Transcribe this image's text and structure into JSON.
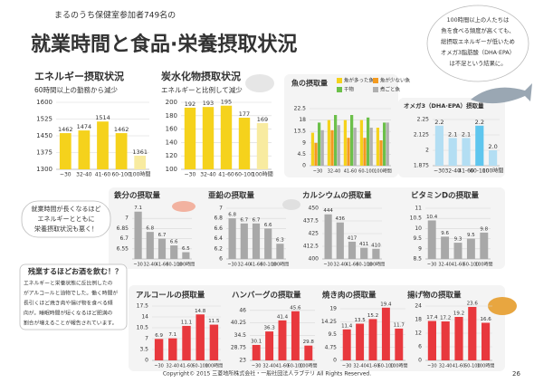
{
  "header": {
    "note": "まるのうち保健室参加者749名の",
    "title": "就業時間と食品·栄養摂取状況"
  },
  "callouts": {
    "omega": [
      "100時間以上の人たちは",
      "魚を食べる頻度が高くても、",
      "総摂取エネルギーが低いため",
      "オメガ3脂肪酸（DHA·EPA）",
      "は不足という結果に。"
    ],
    "nutrition": [
      "就業時間が長くなるほど",
      "エネルギーとともに",
      "栄養摂取状況も悪く！"
    ],
    "alcohol_title": "残業するほどお酒を飲む！？",
    "alcohol_body": [
      "エネルギーと栄養状態に反比例したの",
      "がアルコールと油物でした。働く時間が",
      "長引くほど焼き肉や揚げ物を食べる傾",
      "向が。睡眠時間が短くなるほど肥満の",
      "割合が増えることが報告されています。"
    ]
  },
  "footer": {
    "copyright": "Copyright© 2015 三菱地所株式会社・一般社団法人ラブテリ All Rights Reserved.",
    "page": "26"
  },
  "chart_data": [
    {
      "type": "bar",
      "title": "エネルギー摂取状況",
      "subtitle": "60時間以上の勤務から減少",
      "categories": [
        "~30",
        "32-40",
        "41-60",
        "60-100",
        "100時間"
      ],
      "values": [
        1462,
        1474,
        1514,
        1462,
        1361
      ],
      "colors": [
        "#f5d21c",
        "#f5d21c",
        "#f5d21c",
        "#f5d21c",
        "#f8eba0"
      ],
      "ylim": [
        1300,
        1600
      ],
      "yticks": [
        1300,
        1375,
        1450,
        1525,
        1600
      ],
      "grid": true
    },
    {
      "type": "bar",
      "title": "炭水化物摂取状況",
      "subtitle": "エネルギーと比例して減少",
      "categories": [
        "~30",
        "32-40",
        "41-60",
        "60-100",
        "100時間"
      ],
      "values": [
        192,
        193,
        195,
        177,
        169
      ],
      "colors": [
        "#f5d21c",
        "#f5d21c",
        "#f5d21c",
        "#f5d21c",
        "#f8eba0"
      ],
      "ylim": [
        100,
        200
      ],
      "yticks": [
        100,
        120,
        140,
        160,
        180,
        200
      ],
      "grid": true
    },
    {
      "type": "grouped-bar",
      "title": "魚の摂取量",
      "categories": [
        "~30",
        "32-40",
        "41-60",
        "60-100",
        "100時間"
      ],
      "series": [
        {
          "name": "魚が多った魚",
          "color": "#f5d21c",
          "values": [
            13,
            18,
            18,
            18,
            15
          ]
        },
        {
          "name": "魚が少ない魚",
          "color": "#f39a1e",
          "values": [
            9,
            14,
            11,
            11,
            10
          ]
        },
        {
          "name": "干物",
          "color": "#6cc04a",
          "values": [
            17,
            20,
            20,
            19,
            17
          ]
        },
        {
          "name": "煮ごと魚",
          "color": "#b0b0b0",
          "values": [
            14,
            16,
            15,
            15,
            17
          ]
        }
      ],
      "ylim": [
        0,
        22.5
      ],
      "yticks": [
        0,
        4.5,
        9,
        13.5,
        18,
        22.5
      ],
      "grid": true
    },
    {
      "type": "bar",
      "title": "オメガ3（DHA·EPA）摂取量",
      "categories": [
        "~30",
        "32-40",
        "41-60",
        "60-100",
        "100時間"
      ],
      "values": [
        2.2,
        2.1,
        2.1,
        2.2,
        2.0
      ],
      "value_labels": [
        "2.2",
        "2.1",
        "2.1",
        "2.2",
        "2.0"
      ],
      "colors": [
        "#b3def3",
        "#b3def3",
        "#b3def3",
        "#5fc6ee",
        "#b3def3"
      ],
      "ylim": [
        1.875,
        2.25
      ],
      "yticks": [
        1.875,
        2,
        2.125,
        2.25
      ],
      "grid": true
    },
    {
      "type": "bar",
      "title": "鉄分の摂取量",
      "categories": [
        "~30",
        "32-40",
        "41-60",
        "60-100",
        "100時間"
      ],
      "values": [
        7.1,
        6.8,
        6.7,
        6.6,
        6.5
      ],
      "colors": [
        "#a8a8a8",
        "#a8a8a8",
        "#a8a8a8",
        "#a8a8a8",
        "#a8a8a8"
      ],
      "ylim": [
        6.4,
        7.15
      ],
      "yticks": [
        6.55,
        6.7,
        6.85,
        7
      ],
      "grid": true
    },
    {
      "type": "bar",
      "title": "亜鉛の摂取量",
      "categories": [
        "~30",
        "32-40",
        "41-60",
        "60-100",
        "100時間"
      ],
      "values": [
        6.8,
        6.7,
        6.7,
        6.6,
        6.3
      ],
      "colors": [
        "#a8a8a8",
        "#a8a8a8",
        "#a8a8a8",
        "#a8a8a8",
        "#a8a8a8"
      ],
      "ylim": [
        6,
        7
      ],
      "yticks": [
        6,
        6.2,
        6.4,
        6.6,
        6.8,
        7
      ],
      "grid": true
    },
    {
      "type": "bar",
      "title": "カルシウムの摂取量",
      "categories": [
        "~30",
        "32-40",
        "41-60",
        "60-100",
        "100時間"
      ],
      "values": [
        444,
        436,
        417,
        411,
        410
      ],
      "colors": [
        "#a8a8a8",
        "#a8a8a8",
        "#a8a8a8",
        "#a8a8a8",
        "#a8a8a8"
      ],
      "ylim": [
        400,
        450
      ],
      "yticks": [
        400,
        412.5,
        425,
        437.5,
        450
      ],
      "grid": true
    },
    {
      "type": "bar",
      "title": "ビタミンDの摂取量",
      "categories": [
        "~30",
        "32-40",
        "41-60",
        "60-100",
        "100時間"
      ],
      "values": [
        10.4,
        9.6,
        9.3,
        9.5,
        9.8
      ],
      "colors": [
        "#a8a8a8",
        "#a8a8a8",
        "#a8a8a8",
        "#a8a8a8",
        "#a8a8a8"
      ],
      "ylim": [
        8.5,
        11
      ],
      "yticks": [
        8.5,
        9,
        9.5,
        10,
        10.5,
        11
      ],
      "grid": true
    },
    {
      "type": "bar",
      "title": "アルコールの摂取量",
      "categories": [
        "~30",
        "32-40",
        "41-60",
        "60-100",
        "100時間"
      ],
      "values": [
        6.9,
        7.1,
        11.1,
        14.8,
        11.5
      ],
      "colors": [
        "#e8383d",
        "#e8383d",
        "#e8383d",
        "#e8383d",
        "#e8383d"
      ],
      "ylim": [
        0,
        17.5
      ],
      "yticks": [
        0,
        3.5,
        7,
        10.5,
        14,
        17.5
      ],
      "grid": true
    },
    {
      "type": "bar",
      "title": "ハンバーグの摂取量",
      "categories": [
        "~30",
        "32-40",
        "41-60",
        "60-100",
        "100時間"
      ],
      "values": [
        30.1,
        36.3,
        41.4,
        45.6,
        29.8
      ],
      "colors": [
        "#e8383d",
        "#e8383d",
        "#e8383d",
        "#e8383d",
        "#e8383d"
      ],
      "ylim": [
        23,
        48
      ],
      "yticks": [
        23,
        28.75,
        34.5,
        40.25,
        46
      ],
      "grid": true
    },
    {
      "type": "bar",
      "title": "焼き肉の摂取量",
      "categories": [
        "~30",
        "32-40",
        "41-60",
        "60-100",
        "100時間"
      ],
      "values": [
        11.4,
        13.5,
        15.2,
        19.4,
        11.7
      ],
      "colors": [
        "#e8383d",
        "#e8383d",
        "#e8383d",
        "#e8383d",
        "#e8383d"
      ],
      "ylim": [
        0,
        20
      ],
      "yticks": [
        0,
        4.75,
        9.5,
        14.25,
        19
      ],
      "grid": true
    },
    {
      "type": "bar",
      "title": "揚げ物の摂取量",
      "categories": [
        "~30",
        "32-40",
        "41-60",
        "60-100",
        "100時間"
      ],
      "values": [
        17.4,
        17.2,
        19.2,
        23.6,
        16.6
      ],
      "colors": [
        "#e8383d",
        "#e8383d",
        "#e8383d",
        "#e8383d",
        "#e8383d"
      ],
      "ylim": [
        0,
        24
      ],
      "yticks": [
        0,
        6,
        12,
        18,
        24
      ],
      "grid": true
    }
  ]
}
